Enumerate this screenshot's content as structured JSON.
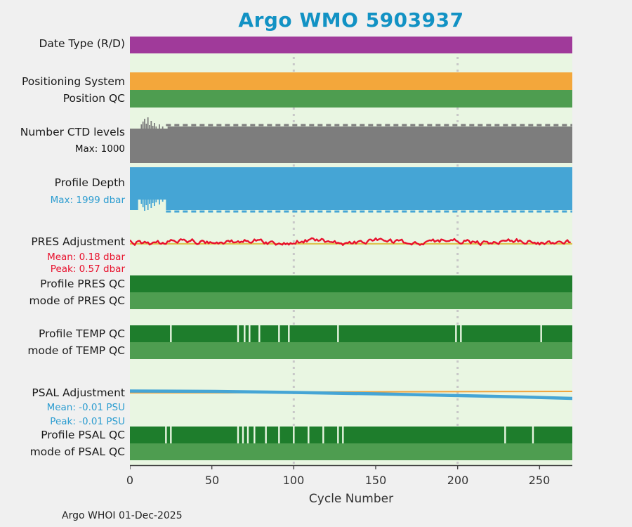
{
  "chart_data": {
    "type": "status-bands",
    "title": "Argo WMO 5903937",
    "xlabel": "Cycle Number",
    "footer": "Argo WHOI 01-Dec-2025",
    "x_range": [
      0,
      270
    ],
    "x_ticks": [
      0,
      50,
      100,
      150,
      200,
      250
    ],
    "gridlines_x": [
      100,
      200
    ],
    "grid_on": true,
    "legend_position": "none",
    "colors": {
      "title": "#1292c4",
      "plot_bg": "#e9f6e2",
      "page_bg": "#f0f0f0",
      "grid": "#c8c8c8",
      "axis": "#444444"
    },
    "rows": [
      {
        "id": "date-type",
        "label": "Date Type (R/D)",
        "type": "band",
        "color": "#a03a9a"
      },
      {
        "id": "positioning-system",
        "label": "Positioning System",
        "type": "band",
        "color": "#f3a73b"
      },
      {
        "id": "position-qc",
        "label": "Position QC",
        "type": "band",
        "color": "#4e9d50"
      },
      {
        "id": "ctd-levels",
        "label": "Number CTD levels",
        "type": "band-top-detail",
        "color": "#7d7d7d",
        "sublabels": [
          {
            "text": "Max: 1000",
            "color": "#111111"
          }
        ],
        "max_value": 1000,
        "spikes": [
          [
            7,
            6
          ],
          [
            8,
            10
          ],
          [
            9,
            14
          ],
          [
            10,
            7
          ],
          [
            11,
            16
          ],
          [
            12,
            5
          ],
          [
            13,
            11
          ],
          [
            14,
            4
          ],
          [
            15,
            8
          ],
          [
            16,
            3
          ],
          [
            18,
            6
          ],
          [
            20,
            3
          ]
        ]
      },
      {
        "id": "profile-depth",
        "label": "Profile Depth",
        "type": "band-bottom-detail",
        "color": "#45a5d5",
        "sublabels": [
          {
            "text": "Max: 1999 dbar",
            "color": "#2b9cd0"
          }
        ],
        "max_value": 1999,
        "unit": "dbar",
        "spikes": [
          [
            7,
            6
          ],
          [
            8,
            11
          ],
          [
            9,
            16
          ],
          [
            10,
            8
          ],
          [
            11,
            15
          ],
          [
            12,
            6
          ],
          [
            13,
            12
          ],
          [
            14,
            5
          ],
          [
            15,
            9
          ],
          [
            16,
            4
          ],
          [
            18,
            7
          ],
          [
            20,
            3
          ]
        ]
      },
      {
        "id": "pres-adjustment",
        "label": "PRES Adjustment",
        "type": "noisy-line",
        "color": "#e8112d",
        "ref_color": "#ddc44f",
        "mean": 0.18,
        "peak": 0.57,
        "unit": "dbar",
        "sublabels": [
          {
            "text": "Mean: 0.18 dbar",
            "color": "#e8112d"
          },
          {
            "text": "Peak: 0.57 dbar",
            "color": "#e8112d"
          }
        ]
      },
      {
        "id": "profile-pres-qc",
        "label": "Profile PRES QC",
        "type": "band",
        "color": "#1e7d2c"
      },
      {
        "id": "mode-pres-qc",
        "label": "mode of PRES QC",
        "type": "band",
        "color": "#4e9d50"
      },
      {
        "id": "profile-temp-qc",
        "label": "Profile TEMP QC",
        "type": "band-marks",
        "color": "#1e7d2c",
        "marks": [
          25,
          66,
          70,
          73,
          79,
          91,
          97,
          127,
          199,
          202,
          251
        ]
      },
      {
        "id": "mode-temp-qc",
        "label": "mode of TEMP QC",
        "type": "band",
        "color": "#4e9d50"
      },
      {
        "id": "psal-adjustment",
        "label": "PSAL Adjustment",
        "type": "dual-line",
        "color": "#45a5d5",
        "ref_color": "#f0a33c",
        "mean": -0.01,
        "peak": -0.01,
        "unit": "PSU",
        "sublabels": [
          {
            "text": "Mean: -0.01 PSU",
            "color": "#2b9cd0"
          },
          {
            "text": "Peak: -0.01 PSU",
            "color": "#2b9cd0"
          }
        ]
      },
      {
        "id": "profile-psal-qc",
        "label": "Profile PSAL QC",
        "type": "band-marks",
        "color": "#1e7d2c",
        "marks": [
          22,
          25,
          66,
          69,
          72,
          76,
          83,
          91,
          100,
          109,
          118,
          127,
          130,
          229,
          246
        ]
      },
      {
        "id": "mode-psal-qc",
        "label": "mode of PSAL QC",
        "type": "band",
        "color": "#4e9d50"
      }
    ]
  }
}
